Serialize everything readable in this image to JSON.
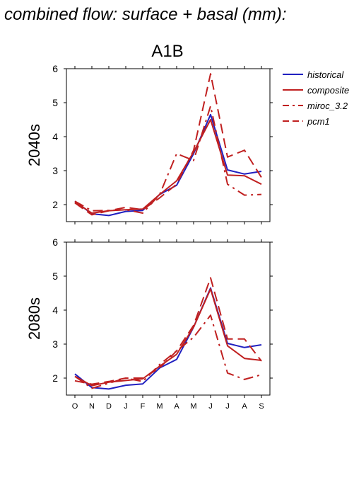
{
  "figure": {
    "title": "combined flow: surface + basal (mm):",
    "scenario": "A1B"
  },
  "legend": [
    {
      "label": "historical",
      "color": "#2020c0",
      "dash": "solid"
    },
    {
      "label": "composite",
      "color": "#c02020",
      "dash": "solid"
    },
    {
      "label": "miroc_3.2",
      "color": "#c02020",
      "dash": "dashdot"
    },
    {
      "label": "pcm1",
      "color": "#c02020",
      "dash": "dashed"
    }
  ],
  "chart_data": [
    {
      "type": "line",
      "title": "2040s",
      "categories": [
        "O",
        "N",
        "D",
        "J",
        "F",
        "M",
        "A",
        "M",
        "J",
        "J",
        "A",
        "S"
      ],
      "ylim": [
        1.5,
        6
      ],
      "yticks": [
        2,
        3,
        4,
        5,
        6
      ],
      "grid": false,
      "legend_position": "right",
      "series": [
        {
          "name": "historical",
          "color": "#2020c0",
          "dash": "solid",
          "values": [
            2.1,
            1.73,
            1.68,
            1.8,
            1.83,
            2.3,
            2.57,
            3.5,
            4.65,
            3.02,
            2.9,
            2.98
          ]
        },
        {
          "name": "composite",
          "color": "#c02020",
          "dash": "solid",
          "values": [
            2.08,
            1.75,
            1.82,
            1.85,
            1.87,
            2.3,
            2.7,
            3.55,
            4.5,
            2.87,
            2.85,
            2.6
          ]
        },
        {
          "name": "miroc_3.2",
          "color": "#c02020",
          "dash": "dashdot",
          "values": [
            2.1,
            1.82,
            1.83,
            1.85,
            1.75,
            2.3,
            3.5,
            3.3,
            4.9,
            2.6,
            2.28,
            2.3
          ]
        },
        {
          "name": "pcm1",
          "color": "#c02020",
          "dash": "dashed",
          "values": [
            2.05,
            1.7,
            1.82,
            1.92,
            1.85,
            2.2,
            2.6,
            3.6,
            5.85,
            3.4,
            3.6,
            2.8
          ]
        }
      ]
    },
    {
      "type": "line",
      "title": "2080s",
      "categories": [
        "O",
        "N",
        "D",
        "J",
        "F",
        "M",
        "A",
        "M",
        "J",
        "J",
        "A",
        "S"
      ],
      "ylim": [
        1.5,
        6
      ],
      "yticks": [
        2,
        3,
        4,
        5,
        6
      ],
      "grid": false,
      "legend_position": "right",
      "series": [
        {
          "name": "historical",
          "color": "#2020c0",
          "dash": "solid",
          "values": [
            2.12,
            1.72,
            1.68,
            1.79,
            1.83,
            2.3,
            2.55,
            3.5,
            4.65,
            3.02,
            2.9,
            2.98
          ]
        },
        {
          "name": "composite",
          "color": "#c02020",
          "dash": "solid",
          "values": [
            2.05,
            1.78,
            1.88,
            1.93,
            1.98,
            2.35,
            2.7,
            3.5,
            4.62,
            2.95,
            2.58,
            2.52
          ]
        },
        {
          "name": "miroc_3.2",
          "color": "#c02020",
          "dash": "dashdot",
          "values": [
            2.05,
            1.7,
            1.85,
            2.0,
            1.9,
            2.4,
            2.8,
            3.2,
            3.85,
            2.15,
            1.96,
            2.1
          ]
        },
        {
          "name": "pcm1",
          "color": "#c02020",
          "dash": "dashed",
          "values": [
            1.92,
            1.82,
            1.9,
            2.0,
            2.0,
            2.3,
            2.8,
            3.55,
            4.95,
            3.15,
            3.15,
            2.5
          ]
        }
      ]
    }
  ]
}
